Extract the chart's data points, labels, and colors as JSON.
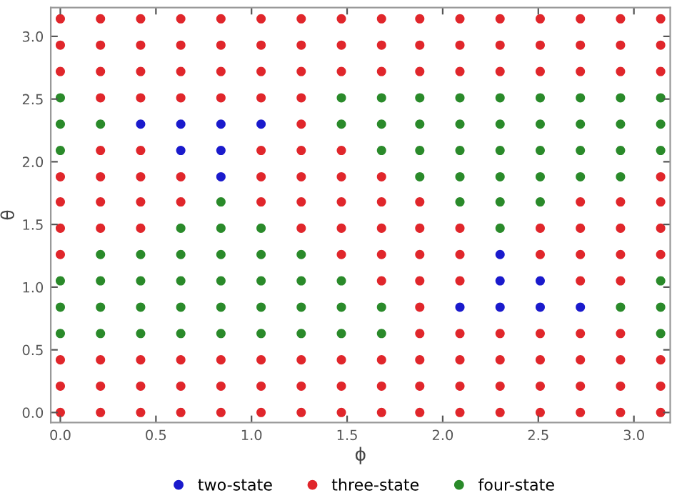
{
  "chart_data": {
    "type": "scatter",
    "xlabel": "ϕ",
    "ylabel": "θ",
    "xlim": [
      -0.05,
      3.19
    ],
    "ylim": [
      -0.08,
      3.23
    ],
    "xticks": [
      {
        "value": 0,
        "label": "0.0"
      },
      {
        "value": 0.5,
        "label": "0.5"
      },
      {
        "value": 1,
        "label": "1.0"
      },
      {
        "value": 1.5,
        "label": "1.5"
      },
      {
        "value": 2,
        "label": "2.0"
      },
      {
        "value": 2.5,
        "label": "2.5"
      },
      {
        "value": 3,
        "label": "3.0"
      }
    ],
    "yticks": [
      {
        "value": 0,
        "label": "0.0"
      },
      {
        "value": 0.5,
        "label": "0.5"
      },
      {
        "value": 1,
        "label": "1.0"
      },
      {
        "value": 1.5,
        "label": "1.5"
      },
      {
        "value": 2,
        "label": "2.0"
      },
      {
        "value": 2.5,
        "label": "2.5"
      },
      {
        "value": 3,
        "label": "3.0"
      }
    ],
    "grid": false,
    "legend": "bottom",
    "marker": "circle",
    "series": [
      {
        "name": "two-state",
        "color": "#1a1acc",
        "x": [
          0.42,
          0.63,
          0.63,
          0.84,
          0.84,
          0.84,
          1.05,
          2.09,
          2.3,
          2.3,
          2.3,
          2.51,
          2.51,
          2.72
        ],
        "values": [
          2.3,
          2.09,
          2.3,
          1.88,
          2.09,
          2.3,
          2.3,
          0.84,
          0.84,
          1.05,
          1.26,
          0.84,
          1.05,
          0.84
        ]
      },
      {
        "name": "three-state",
        "color": "#e0262b",
        "x": [
          0,
          0,
          0,
          0,
          0,
          0,
          0,
          0,
          0,
          0,
          0.21,
          0.21,
          0.21,
          0.21,
          0.21,
          0.21,
          0.21,
          0.21,
          0.21,
          0.21,
          0.21,
          0.42,
          0.42,
          0.42,
          0.42,
          0.42,
          0.42,
          0.42,
          0.42,
          0.42,
          0.42,
          0.42,
          0.63,
          0.63,
          0.63,
          0.63,
          0.63,
          0.63,
          0.63,
          0.63,
          0.63,
          0.84,
          0.84,
          0.84,
          0.84,
          0.84,
          0.84,
          0.84,
          1.05,
          1.05,
          1.05,
          1.05,
          1.05,
          1.05,
          1.05,
          1.05,
          1.05,
          1.05,
          1.26,
          1.26,
          1.26,
          1.26,
          1.26,
          1.26,
          1.26,
          1.26,
          1.26,
          1.26,
          1.26,
          1.26,
          1.47,
          1.47,
          1.47,
          1.47,
          1.47,
          1.47,
          1.47,
          1.47,
          1.47,
          1.47,
          1.47,
          1.68,
          1.68,
          1.68,
          1.68,
          1.68,
          1.68,
          1.68,
          1.68,
          1.68,
          1.68,
          1.68,
          1.88,
          1.88,
          1.88,
          1.88,
          1.88,
          1.88,
          1.88,
          1.88,
          1.88,
          1.88,
          1.88,
          1.88,
          2.09,
          2.09,
          2.09,
          2.09,
          2.09,
          2.09,
          2.09,
          2.09,
          2.09,
          2.09,
          2.3,
          2.3,
          2.3,
          2.3,
          2.3,
          2.3,
          2.3,
          2.51,
          2.51,
          2.51,
          2.51,
          2.51,
          2.51,
          2.51,
          2.51,
          2.51,
          2.72,
          2.72,
          2.72,
          2.72,
          2.72,
          2.72,
          2.72,
          2.72,
          2.72,
          2.72,
          2.72,
          2.93,
          2.93,
          2.93,
          2.93,
          2.93,
          2.93,
          2.93,
          2.93,
          2.93,
          2.93,
          2.93,
          3.14,
          3.14,
          3.14,
          3.14,
          3.14,
          3.14,
          3.14,
          3.14,
          3.14,
          3.14
        ],
        "values": [
          0,
          0.21,
          0.42,
          1.26,
          1.47,
          1.68,
          1.88,
          2.72,
          2.93,
          3.14,
          0,
          0.21,
          0.42,
          1.47,
          1.68,
          1.88,
          2.09,
          2.51,
          2.72,
          2.93,
          3.14,
          0,
          0.21,
          0.42,
          1.47,
          1.68,
          1.88,
          2.09,
          2.51,
          2.72,
          2.93,
          3.14,
          0,
          0.21,
          0.42,
          1.68,
          1.88,
          2.51,
          2.72,
          2.93,
          3.14,
          0,
          0.21,
          0.42,
          2.51,
          2.72,
          2.93,
          3.14,
          0,
          0.21,
          0.42,
          1.68,
          1.88,
          2.09,
          2.51,
          2.72,
          2.93,
          3.14,
          0,
          0.21,
          0.42,
          1.47,
          1.68,
          1.88,
          2.09,
          2.3,
          2.51,
          2.72,
          2.93,
          3.14,
          0,
          0.21,
          0.42,
          1.26,
          1.47,
          1.68,
          1.88,
          2.09,
          2.72,
          2.93,
          3.14,
          0,
          0.21,
          0.42,
          1.05,
          1.26,
          1.47,
          1.68,
          1.88,
          2.72,
          2.93,
          3.14,
          0,
          0.21,
          0.42,
          0.63,
          0.84,
          1.05,
          1.26,
          1.47,
          1.68,
          2.72,
          2.93,
          3.14,
          0,
          0.21,
          0.42,
          0.63,
          1.05,
          1.26,
          1.47,
          2.72,
          2.93,
          3.14,
          0,
          0.21,
          0.42,
          0.63,
          2.72,
          2.93,
          3.14,
          0,
          0.21,
          0.42,
          0.63,
          1.26,
          1.47,
          2.72,
          2.93,
          3.14,
          0,
          0.21,
          0.42,
          0.63,
          1.05,
          1.26,
          1.47,
          1.68,
          2.72,
          2.93,
          3.14,
          0,
          0.21,
          0.42,
          0.63,
          1.05,
          1.26,
          1.47,
          1.68,
          2.72,
          2.93,
          3.14,
          0,
          0.21,
          0.42,
          1.26,
          1.47,
          1.68,
          1.88,
          2.72,
          2.93,
          3.14
        ]
      },
      {
        "name": "four-state",
        "color": "#2a8a2a",
        "x": [
          0,
          0,
          0,
          0,
          0,
          0,
          0.21,
          0.21,
          0.21,
          0.21,
          0.21,
          0.42,
          0.42,
          0.42,
          0.42,
          0.63,
          0.63,
          0.63,
          0.63,
          0.63,
          0.84,
          0.84,
          0.84,
          0.84,
          0.84,
          0.84,
          1.05,
          1.05,
          1.05,
          1.05,
          1.05,
          1.26,
          1.26,
          1.26,
          1.26,
          1.47,
          1.47,
          1.47,
          1.47,
          1.47,
          1.68,
          1.68,
          1.68,
          1.68,
          1.68,
          1.88,
          1.88,
          1.88,
          1.88,
          2.09,
          2.09,
          2.09,
          2.09,
          2.09,
          2.3,
          2.3,
          2.3,
          2.3,
          2.3,
          2.3,
          2.51,
          2.51,
          2.51,
          2.51,
          2.51,
          2.72,
          2.72,
          2.72,
          2.72,
          2.93,
          2.93,
          2.93,
          2.93,
          2.93,
          3.14,
          3.14,
          3.14,
          3.14,
          3.14,
          3.14
        ],
        "values": [
          0.63,
          0.84,
          1.05,
          2.09,
          2.3,
          2.51,
          0.63,
          0.84,
          1.05,
          1.26,
          2.3,
          0.63,
          0.84,
          1.05,
          1.26,
          0.63,
          0.84,
          1.05,
          1.26,
          1.47,
          0.63,
          0.84,
          1.05,
          1.26,
          1.47,
          1.68,
          0.63,
          0.84,
          1.05,
          1.26,
          1.47,
          0.63,
          0.84,
          1.05,
          1.26,
          0.63,
          0.84,
          1.05,
          2.3,
          2.51,
          0.63,
          0.84,
          2.09,
          2.3,
          2.51,
          1.88,
          2.09,
          2.3,
          2.51,
          1.68,
          1.88,
          2.09,
          2.3,
          2.51,
          1.47,
          1.68,
          1.88,
          2.09,
          2.3,
          2.51,
          1.68,
          1.88,
          2.09,
          2.3,
          2.51,
          1.88,
          2.09,
          2.3,
          2.51,
          0.84,
          1.88,
          2.09,
          2.3,
          2.51,
          0.63,
          0.84,
          1.05,
          2.09,
          2.3,
          2.51
        ]
      }
    ]
  }
}
